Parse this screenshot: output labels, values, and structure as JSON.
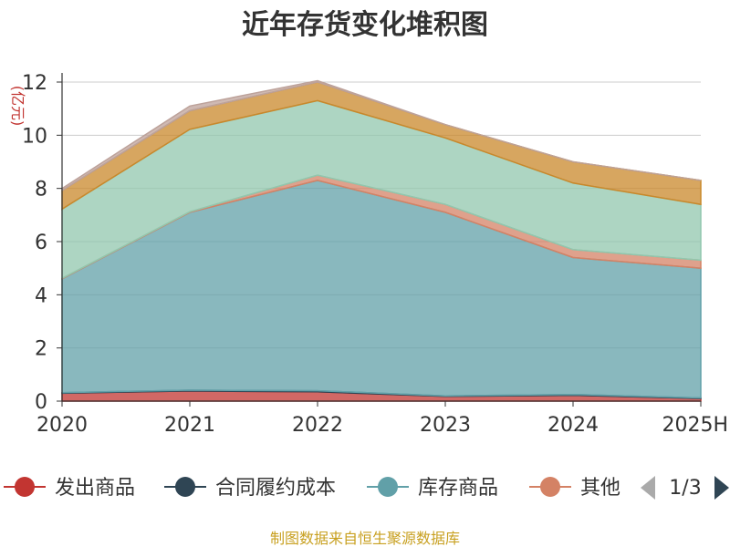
{
  "chart_data": {
    "type": "area",
    "title": "近年存货变化堆积图",
    "ylabel": "(亿元)",
    "xlabel": "",
    "categories": [
      "2020",
      "2021",
      "2022",
      "2023",
      "2024",
      "2025H"
    ],
    "yticks": [
      "0",
      "2",
      "4",
      "6",
      "8",
      "10",
      "12"
    ],
    "ylim": [
      0,
      12
    ],
    "grid": true,
    "stacked": true,
    "series": [
      {
        "name": "发出商品",
        "color": "#c23531",
        "values": [
          0.3,
          0.38,
          0.35,
          0.18,
          0.22,
          0.1
        ]
      },
      {
        "name": "合同履约成本",
        "color": "#2f4554",
        "values": [
          0.02,
          0.03,
          0.04,
          0.02,
          0.03,
          0.02
        ]
      },
      {
        "name": "库存商品",
        "color": "#61a0a8",
        "values": [
          4.28,
          6.69,
          7.91,
          6.9,
          5.15,
          4.88
        ]
      },
      {
        "name": "其他",
        "color": "#d48265",
        "values": [
          0.02,
          0.02,
          0.2,
          0.3,
          0.3,
          0.3
        ]
      },
      {
        "name": "",
        "color": "#91c7ae",
        "values": [
          2.6,
          3.1,
          2.8,
          2.5,
          2.5,
          2.1
        ]
      },
      {
        "name": "",
        "color": "#c9882b",
        "values": [
          0.7,
          0.7,
          0.7,
          0.5,
          0.8,
          0.9
        ]
      },
      {
        "name": "",
        "color": "#bda29a",
        "values": [
          0.08,
          0.18,
          0.05,
          0.0,
          0.0,
          0.0
        ]
      }
    ]
  },
  "legend": {
    "items": [
      "发出商品",
      "合同履约成本",
      "库存商品",
      "其他"
    ],
    "page": "1/3"
  },
  "source": "制图数据来自恒生聚源数据库"
}
